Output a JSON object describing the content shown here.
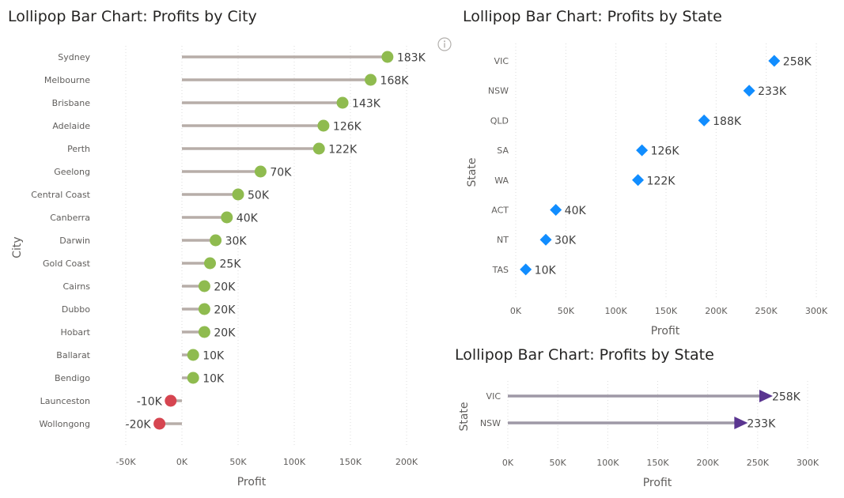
{
  "chart_data": [
    {
      "type": "lollipop",
      "orientation": "horizontal",
      "title": "Lollipop Bar Chart: Profits by City",
      "xlabel": "Profit",
      "ylabel": "City",
      "xlim": [
        -50000,
        200000
      ],
      "x_ticks": [
        -50000,
        0,
        50000,
        100000,
        150000,
        200000
      ],
      "x_tick_labels": [
        "-50K",
        "0K",
        "50K",
        "100K",
        "150K",
        "200K"
      ],
      "categories": [
        "Sydney",
        "Melbourne",
        "Brisbane",
        "Adelaide",
        "Perth",
        "Geelong",
        "Central Coast",
        "Canberra",
        "Darwin",
        "Gold Coast",
        "Cairns",
        "Dubbo",
        "Hobart",
        "Ballarat",
        "Bendigo",
        "Launceston",
        "Wollongong"
      ],
      "values": [
        183000,
        168000,
        143000,
        126000,
        122000,
        70000,
        50000,
        40000,
        30000,
        25000,
        20000,
        20000,
        20000,
        10000,
        10000,
        -10000,
        -20000
      ],
      "data_labels": [
        "183K",
        "168K",
        "143K",
        "126K",
        "122K",
        "70K",
        "50K",
        "40K",
        "30K",
        "25K",
        "20K",
        "20K",
        "20K",
        "10K",
        "10K",
        "-10K",
        "-20K"
      ],
      "marker": "circle",
      "grid": "vertical dotted",
      "colors": {
        "stem": "#b7ada8",
        "positive": "#8fbb4f",
        "negative": "#d64550"
      }
    },
    {
      "type": "scatter",
      "title": "Lollipop Bar Chart: Profits by State",
      "xlabel": "Profit",
      "ylabel": "State",
      "xlim": [
        0,
        300000
      ],
      "x_ticks": [
        0,
        50000,
        100000,
        150000,
        200000,
        250000,
        300000
      ],
      "x_tick_labels": [
        "0K",
        "50K",
        "100K",
        "150K",
        "200K",
        "250K",
        "300K"
      ],
      "categories": [
        "VIC",
        "NSW",
        "QLD",
        "SA",
        "WA",
        "ACT",
        "NT",
        "TAS"
      ],
      "values": [
        258000,
        233000,
        188000,
        126000,
        122000,
        40000,
        30000,
        10000
      ],
      "data_labels": [
        "258K",
        "233K",
        "188K",
        "126K",
        "122K",
        "40K",
        "30K",
        "10K"
      ],
      "marker": "diamond",
      "grid": "vertical dotted",
      "colors": {
        "marker": "#118dff"
      }
    },
    {
      "type": "lollipop",
      "orientation": "horizontal",
      "title": "Lollipop Bar Chart: Profits by State",
      "xlabel": "Profit",
      "ylabel": "State",
      "xlim": [
        0,
        300000
      ],
      "x_ticks": [
        0,
        50000,
        100000,
        150000,
        200000,
        250000,
        300000
      ],
      "x_tick_labels": [
        "0K",
        "50K",
        "100K",
        "150K",
        "200K",
        "250K",
        "300K"
      ],
      "categories": [
        "VIC",
        "NSW"
      ],
      "values": [
        258000,
        233000
      ],
      "data_labels": [
        "258K",
        "233K"
      ],
      "marker": "triangle-right",
      "grid": "vertical dotted",
      "colors": {
        "stem": "#9e98a6",
        "marker": "#5a3590"
      }
    }
  ]
}
